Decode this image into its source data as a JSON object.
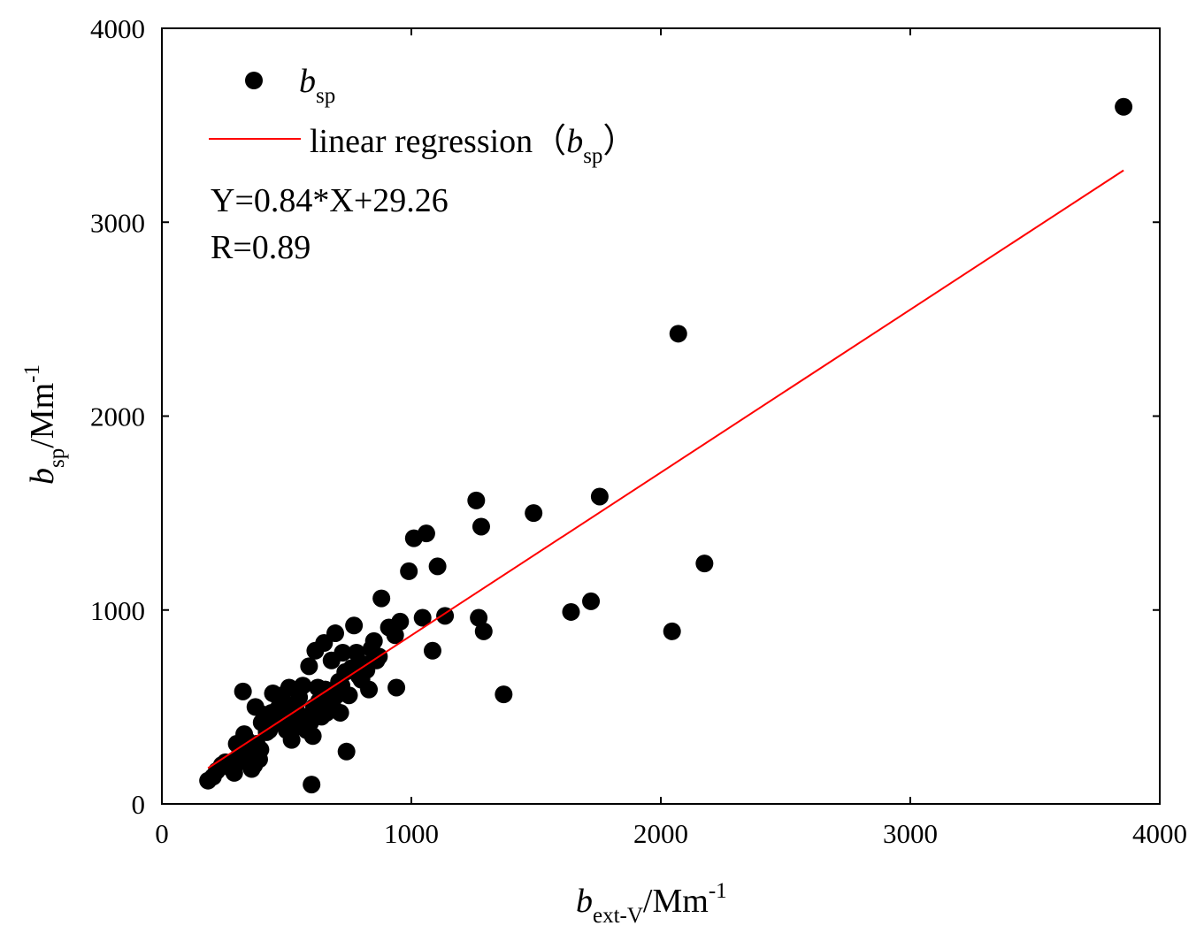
{
  "chart_data": {
    "type": "scatter",
    "x_axis": {
      "label_main": "b",
      "label_sub": "ext-V",
      "label_unit": "/Mm",
      "label_sup": "-1",
      "range": [
        0,
        4000
      ],
      "ticks": [
        0,
        1000,
        2000,
        3000,
        4000
      ],
      "tick_labels": [
        "0",
        "1000",
        "2000",
        "3000",
        "4000"
      ]
    },
    "y_axis": {
      "label_main": "b",
      "label_sub": "sp",
      "label_unit": "/Mm",
      "label_sup": "-1",
      "range": [
        0,
        4000
      ],
      "ticks": [
        0,
        1000,
        2000,
        3000,
        4000
      ],
      "tick_labels": [
        "0",
        "1000",
        "2000",
        "3000",
        "4000"
      ]
    },
    "legend": {
      "position": "top-left",
      "scatter_main": "b",
      "scatter_sub": "sp",
      "line_text": "linear regression（",
      "line_main": "b",
      "line_sub": "sp",
      "line_close": "）"
    },
    "annotations": {
      "equation": "Y=0.84*X+29.26",
      "r_value": "R=0.89"
    },
    "regression": {
      "slope": 0.84,
      "intercept": 29.26,
      "x_start": 185,
      "x_end": 3855,
      "color": "#ff0000"
    },
    "marker_color": "#000000",
    "series": [
      {
        "name": "bsp",
        "points": [
          [
            185,
            120
          ],
          [
            205,
            140
          ],
          [
            220,
            170
          ],
          [
            240,
            200
          ],
          [
            255,
            215
          ],
          [
            270,
            190
          ],
          [
            290,
            160
          ],
          [
            300,
            310
          ],
          [
            305,
            240
          ],
          [
            315,
            290
          ],
          [
            320,
            220
          ],
          [
            325,
            580
          ],
          [
            330,
            360
          ],
          [
            340,
            330
          ],
          [
            345,
            270
          ],
          [
            350,
            300
          ],
          [
            355,
            250
          ],
          [
            360,
            180
          ],
          [
            370,
            200
          ],
          [
            375,
            500
          ],
          [
            380,
            310
          ],
          [
            390,
            230
          ],
          [
            395,
            280
          ],
          [
            400,
            420
          ],
          [
            410,
            460
          ],
          [
            420,
            370
          ],
          [
            430,
            380
          ],
          [
            440,
            470
          ],
          [
            445,
            570
          ],
          [
            460,
            420
          ],
          [
            470,
            500
          ],
          [
            480,
            560
          ],
          [
            490,
            510
          ],
          [
            500,
            380
          ],
          [
            505,
            430
          ],
          [
            510,
            600
          ],
          [
            520,
            330
          ],
          [
            525,
            440
          ],
          [
            535,
            480
          ],
          [
            540,
            520
          ],
          [
            550,
            550
          ],
          [
            555,
            400
          ],
          [
            565,
            610
          ],
          [
            570,
            450
          ],
          [
            580,
            380
          ],
          [
            590,
            710
          ],
          [
            595,
            420
          ],
          [
            600,
            100
          ],
          [
            605,
            350
          ],
          [
            610,
            500
          ],
          [
            615,
            790
          ],
          [
            625,
            600
          ],
          [
            630,
            530
          ],
          [
            640,
            450
          ],
          [
            650,
            830
          ],
          [
            655,
            590
          ],
          [
            660,
            470
          ],
          [
            670,
            550
          ],
          [
            680,
            740
          ],
          [
            685,
            500
          ],
          [
            695,
            880
          ],
          [
            700,
            560
          ],
          [
            710,
            630
          ],
          [
            715,
            470
          ],
          [
            720,
            610
          ],
          [
            725,
            780
          ],
          [
            735,
            680
          ],
          [
            740,
            270
          ],
          [
            750,
            560
          ],
          [
            760,
            700
          ],
          [
            770,
            920
          ],
          [
            780,
            780
          ],
          [
            790,
            660
          ],
          [
            800,
            640
          ],
          [
            810,
            720
          ],
          [
            820,
            690
          ],
          [
            830,
            590
          ],
          [
            840,
            800
          ],
          [
            850,
            840
          ],
          [
            860,
            740
          ],
          [
            870,
            760
          ],
          [
            880,
            1060
          ],
          [
            910,
            910
          ],
          [
            935,
            870
          ],
          [
            940,
            600
          ],
          [
            955,
            940
          ],
          [
            990,
            1200
          ],
          [
            1010,
            1370
          ],
          [
            1045,
            960
          ],
          [
            1060,
            1395
          ],
          [
            1085,
            790
          ],
          [
            1105,
            1225
          ],
          [
            1135,
            970
          ],
          [
            1260,
            1565
          ],
          [
            1270,
            960
          ],
          [
            1280,
            1430
          ],
          [
            1290,
            890
          ],
          [
            1370,
            565
          ],
          [
            1490,
            1500
          ],
          [
            1640,
            990
          ],
          [
            1720,
            1045
          ],
          [
            1755,
            1585
          ],
          [
            2045,
            890
          ],
          [
            2070,
            2425
          ],
          [
            2175,
            1240
          ],
          [
            3855,
            3595
          ]
        ]
      }
    ]
  }
}
